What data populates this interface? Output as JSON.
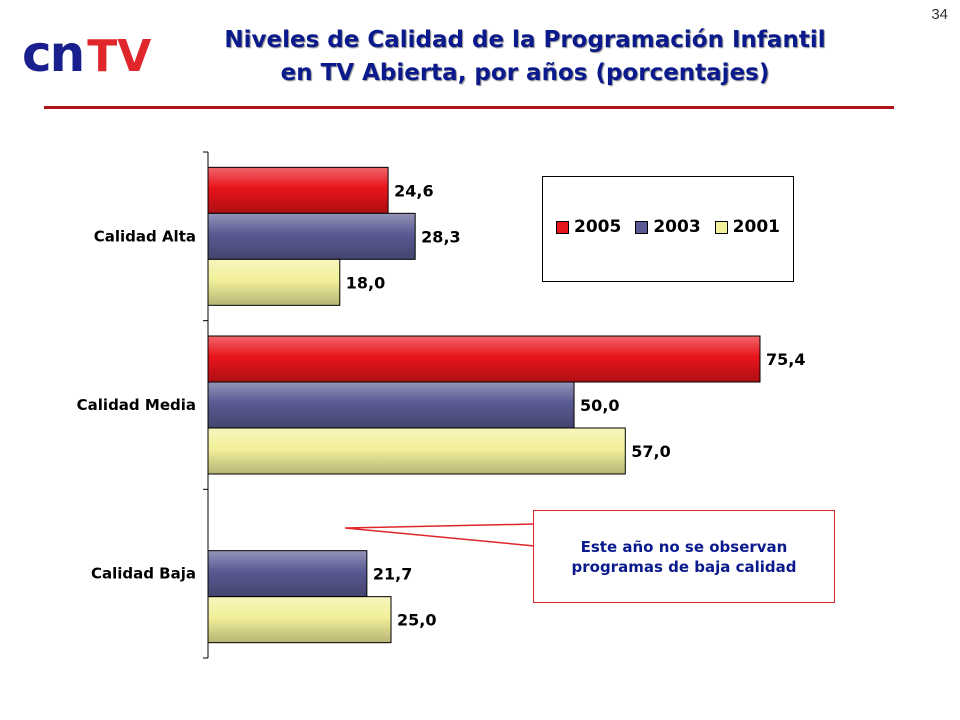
{
  "page_number": "34",
  "logo": {
    "part1": "cn",
    "part2": "TV",
    "color_part1": "#1a1f8e",
    "color_part2": "#e0262b"
  },
  "title": {
    "line1": "Niveles de Calidad de la Programación Infantil",
    "line2": "en TV Abierta, por años (porcentajes)",
    "color": "#0a1a8c",
    "rule_color": "#b0151b"
  },
  "callout": {
    "line1": "Este año no se observan",
    "line2": "programas de baja calidad",
    "border_color": "#e0262b"
  },
  "chart_data": {
    "type": "bar",
    "orientation": "horizontal",
    "categories": [
      "Calidad Alta",
      "Calidad Media",
      "Calidad Baja"
    ],
    "series": [
      {
        "name": "2005",
        "values": [
          24.6,
          75.4,
          null
        ],
        "labels": [
          "24,6",
          "75,4",
          null
        ],
        "color": "#e8141b"
      },
      {
        "name": "2003",
        "values": [
          28.3,
          50.0,
          21.7
        ],
        "labels": [
          "28,3",
          "50,0",
          "21,7"
        ],
        "color": "#5a5a94"
      },
      {
        "name": "2001",
        "values": [
          18.0,
          57.0,
          25.0
        ],
        "labels": [
          "18,0",
          "57,0",
          "25,0"
        ],
        "color": "#f2f09a"
      }
    ],
    "xlim": [
      0,
      75.4
    ],
    "grid": false,
    "legend_position": "top-right",
    "annotation": "Este año no se observan programas de baja calidad"
  }
}
